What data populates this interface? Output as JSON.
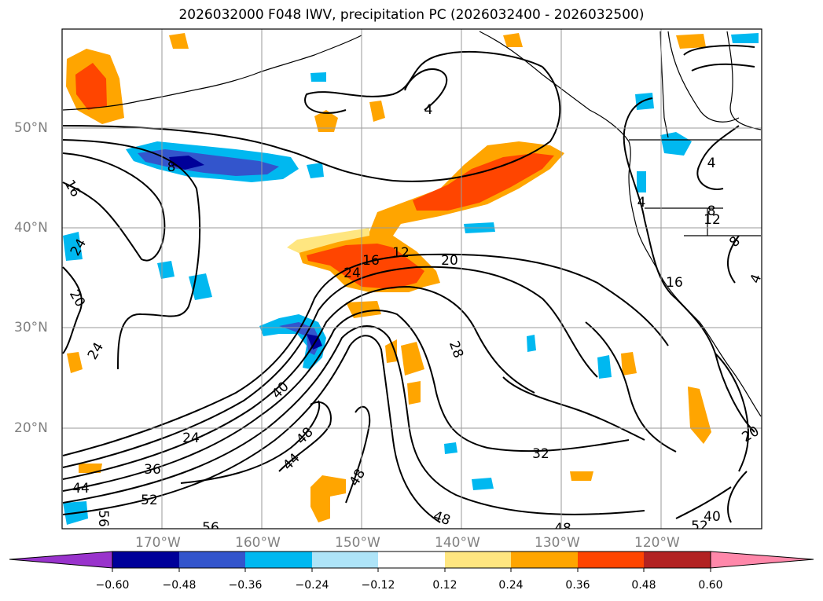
{
  "title": "2026032000 F048 IWV, precipitation PC (2026032400 - 2026032500)",
  "map": {
    "extent": {
      "lon_min": -180,
      "lon_max": -110,
      "lat_min": 10,
      "lat_max": 60
    },
    "grid_lats": [
      20,
      30,
      40,
      50
    ],
    "grid_lons": [
      -170,
      -160,
      -150,
      -140,
      -130,
      -120
    ],
    "lat_labels": [
      "50°N",
      "40°N",
      "30°N",
      "20°N"
    ],
    "lon_labels": [
      "170°W",
      "160°W",
      "150°W",
      "140°W",
      "130°W",
      "120°W"
    ],
    "contour_labels": [
      "8",
      "16",
      "24",
      "20",
      "24",
      "40",
      "24",
      "36",
      "44",
      "52",
      "56",
      "56",
      "48",
      "44",
      "48",
      "16",
      "12",
      "20",
      "24",
      "28",
      "32",
      "48",
      "48",
      "4",
      "4",
      "4",
      "8",
      "12",
      "8",
      "16",
      "4",
      "20",
      "40",
      "52"
    ]
  },
  "colorbar": {
    "ticks": [
      "−0.60",
      "−0.48",
      "−0.36",
      "−0.24",
      "−0.12",
      "0.12",
      "0.24",
      "0.36",
      "0.48",
      "0.60"
    ],
    "colors": [
      "#9933cc",
      "#000099",
      "#3355cc",
      "#00b8f0",
      "#aee4f8",
      "#ffffff",
      "#ffe680",
      "#ffa500",
      "#ff4500",
      "#b22222",
      "#ff88aa"
    ]
  }
}
